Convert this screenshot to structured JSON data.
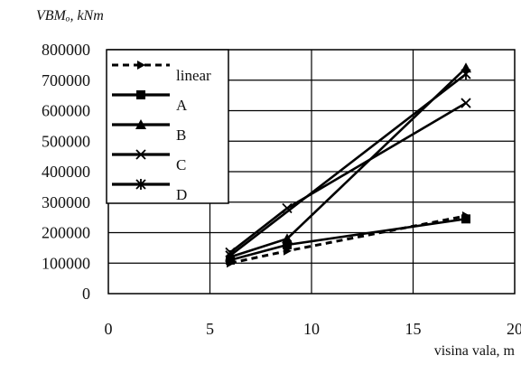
{
  "chart_data": {
    "type": "line",
    "title": "",
    "ylabel": "VBMₒ, kNm",
    "xlabel": "visina vala, m",
    "xlim": [
      0,
      20
    ],
    "ylim": [
      0,
      800000
    ],
    "xticks": [
      0,
      5,
      10,
      15,
      20
    ],
    "yticks": [
      0,
      100000,
      200000,
      300000,
      400000,
      500000,
      600000,
      700000,
      800000
    ],
    "grid": true,
    "legend_position": "top-left",
    "series": [
      {
        "name": "linear",
        "style": "dashed",
        "marker": "arrow",
        "x": [
          6,
          8.8,
          17.6
        ],
        "y": [
          100000,
          140000,
          255000
        ]
      },
      {
        "name": "A",
        "style": "solid",
        "marker": "square",
        "x": [
          6,
          8.8,
          17.6
        ],
        "y": [
          110000,
          160000,
          245000
        ]
      },
      {
        "name": "B",
        "style": "solid",
        "marker": "triangle",
        "x": [
          6,
          8.8,
          17.6
        ],
        "y": [
          120000,
          180000,
          740000
        ]
      },
      {
        "name": "C",
        "style": "solid",
        "marker": "x",
        "x": [
          6,
          8.8,
          17.6
        ],
        "y": [
          135000,
          280000,
          625000
        ]
      },
      {
        "name": "D",
        "style": "solid",
        "marker": "asterisk",
        "x": [
          6,
          17.6
        ],
        "y": [
          125000,
          720000
        ]
      }
    ]
  }
}
